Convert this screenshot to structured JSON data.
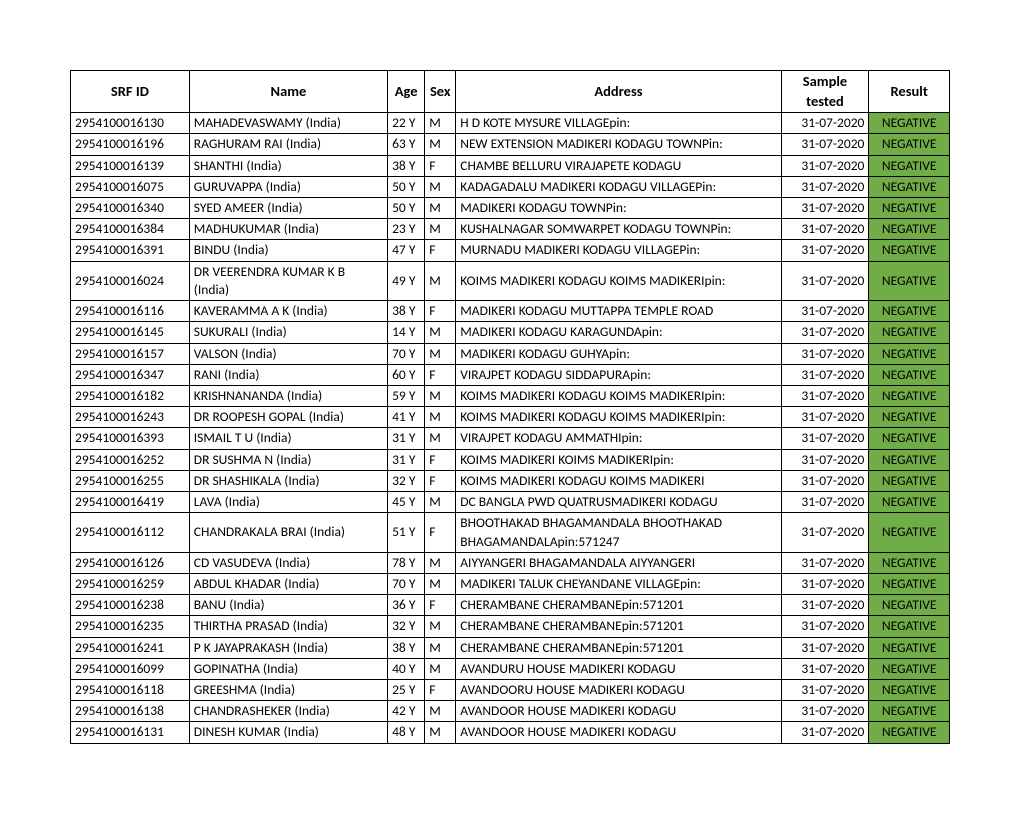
{
  "table": {
    "columns": [
      "SRF ID",
      "Name",
      "Age",
      "Sex",
      "Address",
      "Sample tested",
      "Result"
    ],
    "result_bg": "#70ad47",
    "rows": [
      [
        "2954100016130",
        "MAHADEVASWAMY (India)",
        "22 Y",
        "M",
        "H D KOTE MYSURE VILLAGEpin:",
        "31-07-2020",
        "NEGATIVE"
      ],
      [
        "2954100016196",
        "RAGHURAM RAI (India)",
        "63 Y",
        "M",
        "NEW EXTENSION MADIKERI KODAGU TOWNPin:",
        "31-07-2020",
        "NEGATIVE"
      ],
      [
        "2954100016139",
        "SHANTHI (India)",
        "38 Y",
        "F",
        "CHAMBE BELLURU VIRAJAPETE KODAGU",
        "31-07-2020",
        "NEGATIVE"
      ],
      [
        "2954100016075",
        "GURUVAPPA (India)",
        "50 Y",
        "M",
        "KADAGADALU MADIKERI KODAGU VILLAGEPin:",
        "31-07-2020",
        "NEGATIVE"
      ],
      [
        "2954100016340",
        "SYED AMEER (India)",
        "50 Y",
        "M",
        "MADIKERI KODAGU TOWNPin:",
        "31-07-2020",
        "NEGATIVE"
      ],
      [
        "2954100016384",
        "MADHUKUMAR (India)",
        "23 Y",
        "M",
        "KUSHALNAGAR SOMWARPET KODAGU TOWNPin:",
        "31-07-2020",
        "NEGATIVE"
      ],
      [
        "2954100016391",
        "BINDU (India)",
        "47 Y",
        "F",
        "MURNADU MADIKERI KODAGU VILLAGEPin:",
        "31-07-2020",
        "NEGATIVE"
      ],
      [
        "2954100016024",
        "DR VEERENDRA KUMAR K B (India)",
        "49 Y",
        "M",
        "KOIMS MADIKERI KODAGU KOIMS MADIKERIpin:",
        "31-07-2020",
        "NEGATIVE"
      ],
      [
        "2954100016116",
        "KAVERAMMA A K (India)",
        "38 Y",
        "F",
        "MADIKERI KODAGU MUTTAPPA TEMPLE ROAD",
        "31-07-2020",
        "NEGATIVE"
      ],
      [
        "2954100016145",
        "SUKURALI (India)",
        "14 Y",
        "M",
        "MADIKERI KODAGU KARAGUNDApin:",
        "31-07-2020",
        "NEGATIVE"
      ],
      [
        "2954100016157",
        "VALSON (India)",
        "70 Y",
        "M",
        "MADIKERI KODAGU GUHYApin:",
        "31-07-2020",
        "NEGATIVE"
      ],
      [
        "2954100016347",
        "RANI (India)",
        "60 Y",
        "F",
        "VIRAJPET KODAGU SIDDAPURApin:",
        "31-07-2020",
        "NEGATIVE"
      ],
      [
        "2954100016182",
        "KRISHNANANDA (India)",
        "59 Y",
        "M",
        "KOIMS MADIKERI KODAGU KOIMS MADIKERIpin:",
        "31-07-2020",
        "NEGATIVE"
      ],
      [
        "2954100016243",
        "DR ROOPESH GOPAL (India)",
        "41 Y",
        "M",
        "KOIMS MADIKERI KODAGU KOIMS MADIKERIpin:",
        "31-07-2020",
        "NEGATIVE"
      ],
      [
        "2954100016393",
        "ISMAIL T U (India)",
        "31 Y",
        "M",
        "VIRAJPET KODAGU AMMATHIpin:",
        "31-07-2020",
        "NEGATIVE"
      ],
      [
        "2954100016252",
        "DR SUSHMA N (India)",
        "31 Y",
        "F",
        "KOIMS MADIKERI KOIMS MADIKERIpin:",
        "31-07-2020",
        "NEGATIVE"
      ],
      [
        "2954100016255",
        "DR SHASHIKALA (India)",
        "32 Y",
        "F",
        "KOIMS MADIKERI KODAGU KOIMS MADIKERI",
        "31-07-2020",
        "NEGATIVE"
      ],
      [
        "2954100016419",
        "LAVA (India)",
        "45 Y",
        "M",
        "DC BANGLA PWD QUATRUSMADIKERI KODAGU",
        "31-07-2020",
        "NEGATIVE"
      ],
      [
        "2954100016112",
        "CHANDRAKALA BRAI (India)",
        "51 Y",
        "F",
        "BHOOTHAKAD BHAGAMANDALA BHOOTHAKAD BHAGAMANDALApin:571247",
        "31-07-2020",
        "NEGATIVE"
      ],
      [
        "2954100016126",
        "CD VASUDEVA (India)",
        "78 Y",
        "M",
        "AIYYANGERI BHAGAMANDALA AIYYANGERI",
        "31-07-2020",
        "NEGATIVE"
      ],
      [
        "2954100016259",
        "ABDUL KHADAR (India)",
        "70 Y",
        "M",
        "MADIKERI TALUK CHEYANDANE VILLAGEpin:",
        "31-07-2020",
        "NEGATIVE"
      ],
      [
        "2954100016238",
        "BANU (India)",
        "36 Y",
        "F",
        "CHERAMBANE CHERAMBANEpin:571201",
        "31-07-2020",
        "NEGATIVE"
      ],
      [
        "2954100016235",
        "THIRTHA PRASAD (India)",
        "32 Y",
        "M",
        "CHERAMBANE CHERAMBANEpin:571201",
        "31-07-2020",
        "NEGATIVE"
      ],
      [
        "2954100016241",
        "P K JAYAPRAKASH (India)",
        "38 Y",
        "M",
        "CHERAMBANE CHERAMBANEpin:571201",
        "31-07-2020",
        "NEGATIVE"
      ],
      [
        "2954100016099",
        "GOPINATHA (India)",
        "40 Y",
        "M",
        "AVANDURU HOUSE MADIKERI KODAGU",
        "31-07-2020",
        "NEGATIVE"
      ],
      [
        "2954100016118",
        "GREESHMA (India)",
        "25 Y",
        "F",
        "AVANDOORU HOUSE MADIKERI KODAGU",
        "31-07-2020",
        "NEGATIVE"
      ],
      [
        "2954100016138",
        "CHANDRASHEKER (India)",
        "42 Y",
        "M",
        "AVANDOOR HOUSE MADIKERI KODAGU",
        "31-07-2020",
        "NEGATIVE"
      ],
      [
        "2954100016131",
        "DINESH KUMAR (India)",
        "48 Y",
        "M",
        "AVANDOOR HOUSE MADIKERI  KODAGU",
        "31-07-2020",
        "NEGATIVE"
      ]
    ]
  }
}
